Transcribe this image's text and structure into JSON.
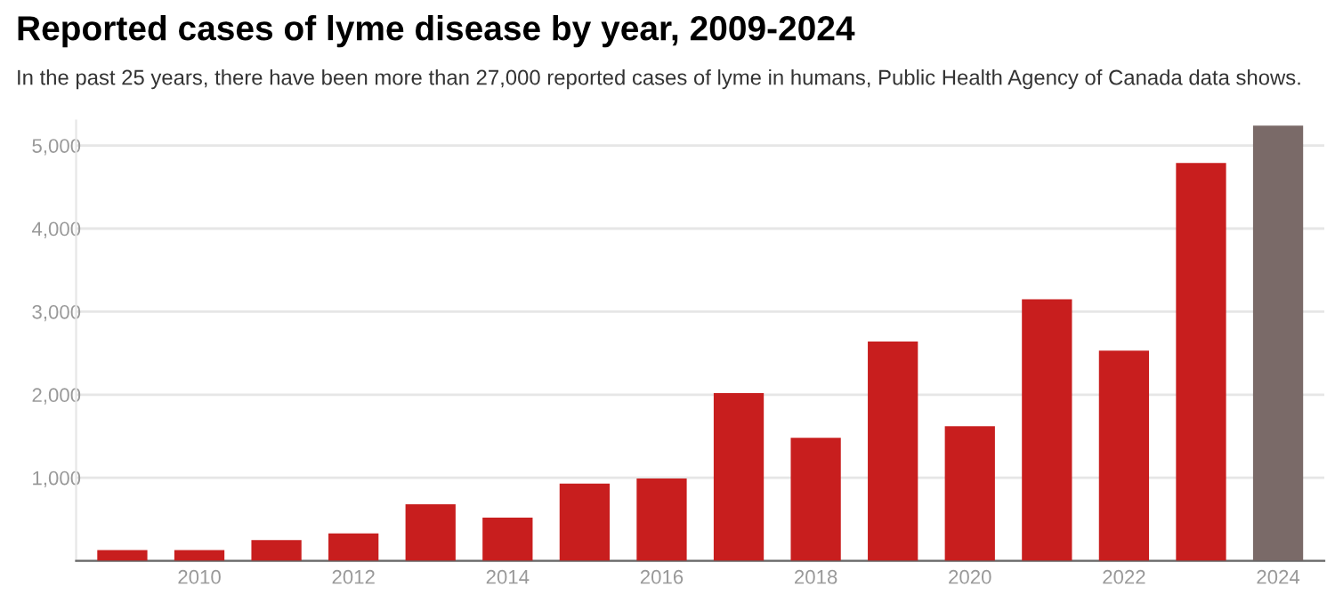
{
  "chart_data": {
    "type": "bar",
    "title": "Reported cases of lyme disease by year, 2009-2024",
    "subtitle": "In the past 25 years, there have been more than 27,000 reported cases of lyme in humans, Public Health Agency of Canada data shows.",
    "categories": [
      null,
      "2010",
      null,
      "2012",
      null,
      "2014",
      null,
      "2016",
      null,
      "2018",
      null,
      "2020",
      null,
      "2022",
      null,
      "2024"
    ],
    "values": [
      130,
      130,
      250,
      330,
      680,
      520,
      930,
      990,
      2020,
      1480,
      2640,
      1620,
      3150,
      2530,
      4790,
      5240
    ],
    "colors": [
      "#c81e1e",
      "#c81e1e",
      "#c81e1e",
      "#c81e1e",
      "#c81e1e",
      "#c81e1e",
      "#c81e1e",
      "#c81e1e",
      "#c81e1e",
      "#c81e1e",
      "#c81e1e",
      "#c81e1e",
      "#c81e1e",
      "#c81e1e",
      "#c81e1e",
      "#7a6a68"
    ],
    "ylim": [
      0,
      5300
    ],
    "yticks": [
      {
        "value": 0,
        "label": null
      },
      {
        "value": 1000,
        "label": "1,000"
      },
      {
        "value": 2000,
        "label": "2,000"
      },
      {
        "value": 3000,
        "label": "3,000"
      },
      {
        "value": 4000,
        "label": "4,000"
      },
      {
        "value": 5000,
        "label": "5,000"
      }
    ],
    "grid": "y",
    "legend": false
  }
}
